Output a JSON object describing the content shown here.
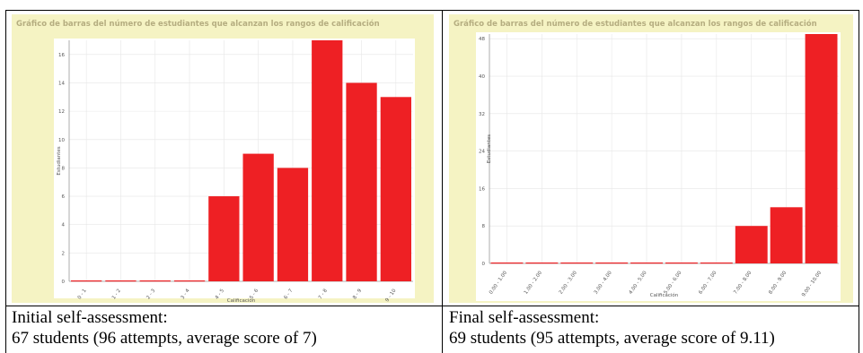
{
  "panels": [
    {
      "title": "Gráfico de barras del número de estudiantes que alcanzan los rangos de calificación",
      "caption_line1": "Initial self-assessment:",
      "caption_line2": "67 students (96 attempts, average score of 7)"
    },
    {
      "title": "Gráfico de barras del número de estudiantes que alcanzan los rangos de calificación",
      "caption_line1": "Final self-assessment:",
      "caption_line2": "69 students (95 attempts, average score of 9.11)"
    }
  ],
  "colors": {
    "bar": "#ee2024",
    "panel_bg": "#f5f3c3",
    "title": "#b5ad80",
    "grid": "#e6e6e6"
  },
  "chart_data": [
    {
      "type": "bar",
      "title": "Gráfico de barras del número de estudiantes que alcanzan los rangos de calificación",
      "xlabel": "Calificación",
      "ylabel": "Estudiantes",
      "categories": [
        "0 - 1",
        "1 - 2",
        "2 - 3",
        "3 - 4",
        "4 - 5",
        "5 - 6",
        "6 - 7",
        "7 - 8",
        "8 - 9",
        "9 - 10"
      ],
      "values": [
        0,
        0,
        0,
        0,
        6,
        9,
        8,
        17,
        14,
        13
      ],
      "ylim": [
        0,
        17
      ],
      "yticks": [
        0,
        2,
        4,
        6,
        8,
        10,
        12,
        14,
        16
      ],
      "grid": true
    },
    {
      "type": "bar",
      "title": "Gráfico de barras del número de estudiantes que alcanzan los rangos de calificación",
      "xlabel": "Calificación",
      "ylabel": "Estudiantes",
      "categories": [
        "0.00 - 1.00",
        "1.00 - 2.00",
        "2.00 - 3.00",
        "3.00 - 4.00",
        "4.00 - 5.00",
        "5.00 - 6.00",
        "6.00 - 7.00",
        "7.00 - 8.00",
        "8.00 - 9.00",
        "9.00 - 10.00"
      ],
      "values": [
        0,
        0,
        0,
        0,
        0,
        0,
        0,
        8,
        12,
        49
      ],
      "ylim": [
        0,
        49
      ],
      "yticks": [
        0,
        8,
        16,
        24,
        32,
        40,
        48
      ],
      "grid": true
    }
  ]
}
